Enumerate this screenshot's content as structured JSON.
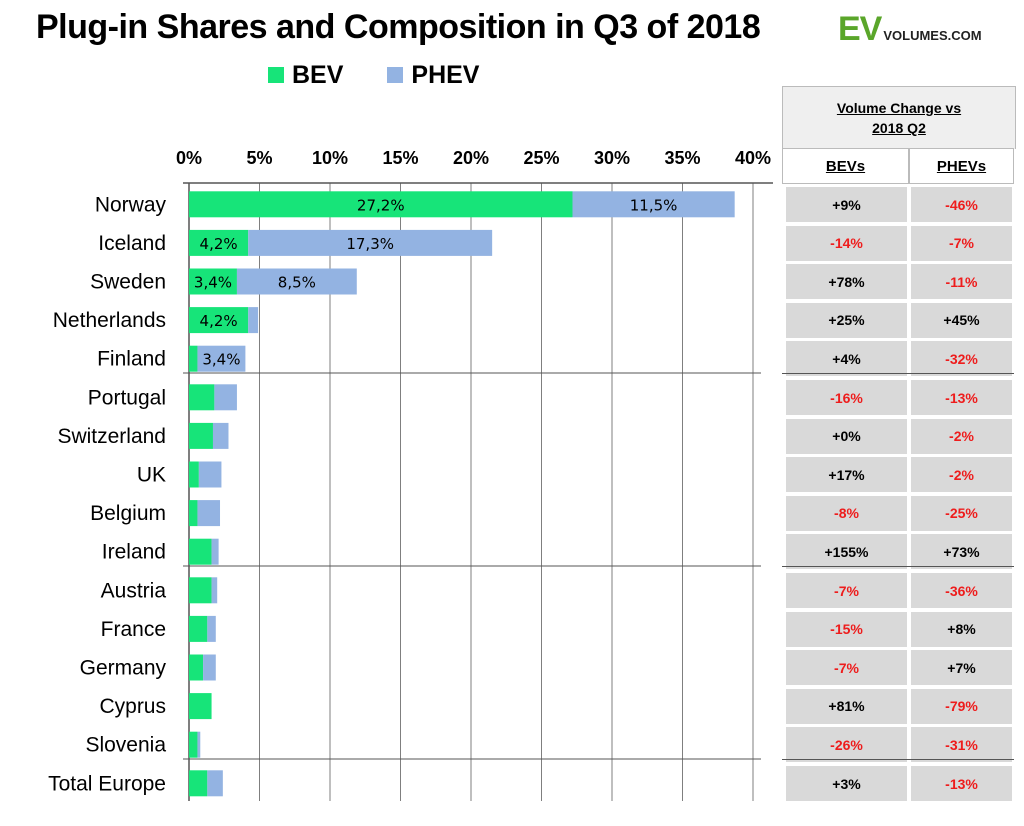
{
  "title": "Plug-in Shares and Composition in Q3 of 2018",
  "logo": {
    "big": "EV",
    "small": "VOLUMES.COM"
  },
  "colors": {
    "bev": "#17e479",
    "phev": "#93b3e2",
    "negative": "#ee1c1c",
    "positive": "#000000",
    "cell_bg": "#d9d9d9"
  },
  "legend": {
    "bev": "BEV",
    "phev": "PHEV"
  },
  "table": {
    "header": "Volume Change vs 2018 Q2",
    "col_bev": "BEVs",
    "col_phev": "PHEVs"
  },
  "chart_data": {
    "type": "bar",
    "orientation": "horizontal",
    "stacked": true,
    "title": "Plug-in Shares and Composition in Q3 of 2018",
    "xlim": [
      0,
      40
    ],
    "x_ticks": [
      "0%",
      "5%",
      "10%",
      "15%",
      "20%",
      "25%",
      "30%",
      "35%",
      "40%"
    ],
    "categories": [
      "Norway",
      "Iceland",
      "Sweden",
      "Netherlands",
      "Finland",
      "Portugal",
      "Switzerland",
      "UK",
      "Belgium",
      "Ireland",
      "Austria",
      "France",
      "Germany",
      "Cyprus",
      "Slovenia",
      "Total Europe"
    ],
    "series": [
      {
        "name": "BEV",
        "values": [
          27.2,
          4.2,
          3.4,
          4.2,
          0.6,
          1.8,
          1.7,
          0.7,
          0.6,
          1.6,
          1.6,
          1.3,
          1.0,
          1.6,
          0.6,
          1.3
        ],
        "labels": [
          "27,2%",
          "4,2%",
          "3,4%",
          "4,2%",
          "",
          "",
          "",
          "",
          "",
          "",
          "",
          "",
          "",
          "",
          "",
          ""
        ]
      },
      {
        "name": "PHEV",
        "values": [
          11.5,
          17.3,
          8.5,
          0.7,
          3.4,
          1.6,
          1.1,
          1.6,
          1.6,
          0.5,
          0.4,
          0.6,
          0.9,
          0.0,
          0.2,
          1.1
        ],
        "labels": [
          "11,5%",
          "17,3%",
          "8,5%",
          "",
          "3,4%",
          "",
          "",
          "",
          "",
          "",
          "",
          "",
          "",
          "",
          "",
          ""
        ]
      }
    ],
    "group_separators_after": [
      "Finland",
      "Ireland",
      "Slovenia"
    ],
    "volume_change": {
      "bev": [
        "+9%",
        "-14%",
        "+78%",
        "+25%",
        "+4%",
        "-16%",
        "+0%",
        "+17%",
        "-8%",
        "+155%",
        "-7%",
        "-15%",
        "-7%",
        "+81%",
        "-26%",
        "+3%"
      ],
      "phev": [
        "-46%",
        "-7%",
        "-11%",
        "+45%",
        "-32%",
        "-13%",
        "-2%",
        "-2%",
        "-25%",
        "+73%",
        "-36%",
        "+8%",
        "+7%",
        "-79%",
        "-31%",
        "-13%"
      ]
    }
  }
}
